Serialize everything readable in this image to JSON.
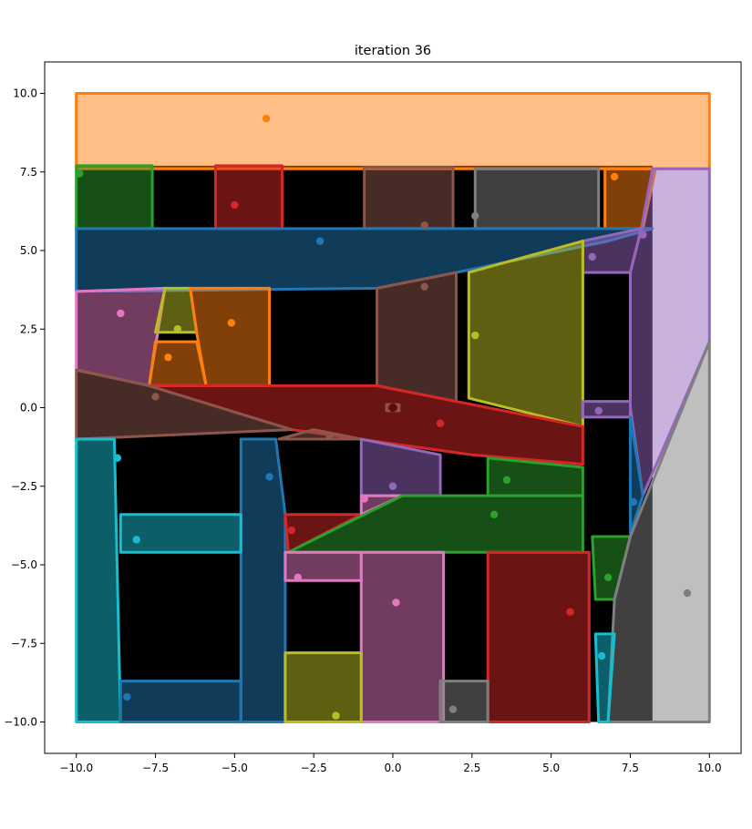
{
  "chart_data": {
    "type": "polygon-map",
    "title": "iteration 36",
    "xlim": [
      -11,
      11
    ],
    "ylim": [
      -11,
      11
    ],
    "x_ticks": [
      -10.0,
      -7.5,
      -5.0,
      -2.5,
      0.0,
      2.5,
      5.0,
      7.5,
      10.0
    ],
    "x_tick_labels": [
      "−10.0",
      "−7.5",
      "−5.0",
      "−2.5",
      "0.0",
      "2.5",
      "5.0",
      "7.5",
      "10.0"
    ],
    "y_ticks": [
      -10.0,
      -7.5,
      -5.0,
      -2.5,
      0.0,
      2.5,
      5.0,
      7.5,
      10.0
    ],
    "y_tick_labels": [
      "−10.0",
      "−7.5",
      "−5.0",
      "−2.5",
      "0.0",
      "2.5",
      "5.0",
      "7.5",
      "10.0"
    ],
    "grid": false,
    "colors": {
      "blue": "#1f77b4",
      "orange": "#ff7f0e",
      "green": "#2ca02c",
      "red": "#d62728",
      "purple": "#9467bd",
      "brown": "#8c564b",
      "pink": "#e377c2",
      "gray": "#7f7f7f",
      "olive": "#bcbd22",
      "cyan": "#17becf"
    },
    "background_obstacle": {
      "color": "#000000",
      "polygon": [
        [
          -10,
          7.7
        ],
        [
          8.2,
          7.7
        ],
        [
          8.2,
          -10
        ],
        [
          -10,
          -10
        ]
      ]
    },
    "regions": [
      {
        "color": "orange",
        "site": [
          -4,
          9.2
        ],
        "polygon": [
          [
            -10,
            10
          ],
          [
            10,
            10
          ],
          [
            10,
            7.6
          ],
          [
            -10,
            7.6
          ]
        ]
      },
      {
        "color": "green",
        "site": [
          -9.9,
          7.45
        ],
        "polygon": [
          [
            -10,
            7.7
          ],
          [
            -7.6,
            7.7
          ],
          [
            -7.6,
            5.7
          ],
          [
            -10,
            5.7
          ]
        ]
      },
      {
        "color": "red",
        "site": [
          -5.0,
          6.45
        ],
        "polygon": [
          [
            -5.6,
            7.7
          ],
          [
            -3.5,
            7.7
          ],
          [
            -3.5,
            5.7
          ],
          [
            -5.6,
            5.7
          ]
        ]
      },
      {
        "color": "brown",
        "site": [
          1.0,
          5.8
        ],
        "polygon": [
          [
            -0.9,
            7.65
          ],
          [
            1.9,
            7.65
          ],
          [
            1.9,
            5.7
          ],
          [
            -0.9,
            5.7
          ]
        ]
      },
      {
        "color": "gray",
        "site": [
          2.6,
          6.1
        ],
        "polygon": [
          [
            2.6,
            7.6
          ],
          [
            6.5,
            7.6
          ],
          [
            6.5,
            5.7
          ],
          [
            2.6,
            5.7
          ]
        ]
      },
      {
        "color": "orange",
        "site": [
          7.0,
          7.35
        ],
        "polygon": [
          [
            6.7,
            7.6
          ],
          [
            8.3,
            7.6
          ],
          [
            7.9,
            5.7
          ],
          [
            6.7,
            5.7
          ]
        ]
      },
      {
        "color": "blue",
        "site": [
          -2.3,
          5.3
        ],
        "polygon": [
          [
            -10,
            5.7
          ],
          [
            8.2,
            5.7
          ],
          [
            6.8,
            5.3
          ],
          [
            2.0,
            4.3
          ],
          [
            -0.5,
            3.8
          ],
          [
            -10,
            3.7
          ]
        ]
      },
      {
        "color": "purple",
        "site": [
          7.9,
          5.5
        ],
        "polygon": [
          [
            8.2,
            7.6
          ],
          [
            10,
            7.6
          ],
          [
            10,
            2.1
          ],
          [
            7.9,
            -2.8
          ],
          [
            7.5,
            0.0
          ],
          [
            7.5,
            4.3
          ],
          [
            7.85,
            5.7
          ]
        ]
      },
      {
        "color": "purple",
        "site": [
          6.3,
          4.8
        ],
        "polygon": [
          [
            6.0,
            5.3
          ],
          [
            7.85,
            5.7
          ],
          [
            7.5,
            4.3
          ],
          [
            6.0,
            4.3
          ]
        ]
      },
      {
        "color": "pink",
        "site": [
          -8.6,
          3.0
        ],
        "polygon": [
          [
            -10,
            3.7
          ],
          [
            -7.2,
            3.8
          ],
          [
            -7.7,
            0.7
          ],
          [
            -10,
            1.2
          ]
        ]
      },
      {
        "color": "olive",
        "site": [
          -6.8,
          2.5
        ],
        "polygon": [
          [
            -7.2,
            3.8
          ],
          [
            -6.4,
            3.8
          ],
          [
            -6.2,
            2.4
          ],
          [
            -7.5,
            2.4
          ]
        ]
      },
      {
        "color": "orange",
        "site": [
          -5.1,
          2.7
        ],
        "polygon": [
          [
            -6.4,
            3.8
          ],
          [
            -3.9,
            3.8
          ],
          [
            -3.9,
            0.7
          ],
          [
            -5.9,
            0.7
          ],
          [
            -6.2,
            2.4
          ]
        ]
      },
      {
        "color": "orange",
        "site": [
          -7.1,
          1.6
        ],
        "polygon": [
          [
            -7.5,
            2.1
          ],
          [
            -6.2,
            2.1
          ],
          [
            -5.9,
            0.7
          ],
          [
            -7.7,
            0.7
          ]
        ]
      },
      {
        "color": "brown",
        "site": [
          1.0,
          3.85
        ],
        "polygon": [
          [
            -0.5,
            3.8
          ],
          [
            2.0,
            4.3
          ],
          [
            2.0,
            0.2
          ],
          [
            -0.5,
            0.7
          ]
        ]
      },
      {
        "color": "olive",
        "site": [
          2.6,
          2.3
        ],
        "polygon": [
          [
            2.4,
            4.3
          ],
          [
            6.0,
            5.3
          ],
          [
            6.0,
            -0.6
          ],
          [
            2.4,
            0.3
          ]
        ]
      },
      {
        "color": "red",
        "site": [
          1.5,
          -0.5
        ],
        "polygon": [
          [
            -7.7,
            0.7
          ],
          [
            -0.5,
            0.7
          ],
          [
            2.0,
            0.2
          ],
          [
            6.0,
            -0.6
          ],
          [
            6.0,
            -1.8
          ],
          [
            2.5,
            -1.5
          ],
          [
            -3.2,
            -0.7
          ]
        ]
      },
      {
        "color": "brown",
        "site": [
          -7.5,
          0.35
        ],
        "polygon": [
          [
            -10,
            1.2
          ],
          [
            -7.7,
            0.7
          ],
          [
            -3.2,
            -0.7
          ],
          [
            -10,
            -1.0
          ]
        ]
      },
      {
        "color": "brown",
        "site": [
          -2.0,
          -0.9
        ],
        "polygon": [
          [
            -3.6,
            -1.0
          ],
          [
            -2.5,
            -0.7
          ],
          [
            -1.0,
            -1.0
          ]
        ]
      },
      {
        "color": "brown",
        "site": [
          0.0,
          0.0
        ],
        "polygon": [
          [
            -0.2,
            0.1
          ],
          [
            0.2,
            0.1
          ],
          [
            0.2,
            -0.1
          ],
          [
            -0.2,
            -0.1
          ]
        ]
      },
      {
        "color": "purple",
        "site": [
          6.5,
          -0.1
        ],
        "polygon": [
          [
            6.0,
            0.2
          ],
          [
            7.5,
            0.2
          ],
          [
            7.5,
            -0.3
          ],
          [
            6.0,
            -0.3
          ]
        ]
      },
      {
        "color": "cyan",
        "site": [
          -8.7,
          -1.6
        ],
        "polygon": [
          [
            -10,
            -1.0
          ],
          [
            -8.8,
            -1.0
          ],
          [
            -8.6,
            -10
          ],
          [
            -10,
            -10
          ]
        ]
      },
      {
        "color": "blue",
        "site": [
          -3.9,
          -2.2
        ],
        "polygon": [
          [
            -4.8,
            -1.0
          ],
          [
            -3.7,
            -1.0
          ],
          [
            -3.4,
            -3.4
          ],
          [
            -3.4,
            -10
          ],
          [
            -4.8,
            -10
          ]
        ]
      },
      {
        "color": "purple",
        "site": [
          0.0,
          -2.5
        ],
        "polygon": [
          [
            -1.0,
            -1.0
          ],
          [
            1.5,
            -1.5
          ],
          [
            1.5,
            -2.8
          ],
          [
            -1.0,
            -2.8
          ]
        ]
      },
      {
        "color": "green",
        "site": [
          3.6,
          -2.3
        ],
        "polygon": [
          [
            3.0,
            -1.6
          ],
          [
            6.0,
            -1.9
          ],
          [
            6.0,
            -2.8
          ],
          [
            3.0,
            -2.8
          ]
        ]
      },
      {
        "color": "blue",
        "site": [
          7.6,
          -3.0
        ],
        "polygon": [
          [
            7.5,
            -0.3
          ],
          [
            7.9,
            -2.8
          ],
          [
            7.5,
            -4.0
          ],
          [
            7.5,
            -0.3
          ]
        ]
      },
      {
        "color": "cyan",
        "site": [
          -8.1,
          -4.2
        ],
        "polygon": [
          [
            -8.6,
            -3.4
          ],
          [
            -4.8,
            -3.4
          ],
          [
            -4.8,
            -4.6
          ],
          [
            -8.6,
            -4.6
          ]
        ]
      },
      {
        "color": "red",
        "site": [
          -3.2,
          -3.9
        ],
        "polygon": [
          [
            -3.4,
            -3.4
          ],
          [
            -1.0,
            -3.4
          ],
          [
            -3.3,
            -4.6
          ]
        ]
      },
      {
        "color": "pink",
        "site": [
          -0.9,
          -2.9
        ],
        "polygon": [
          [
            -1.0,
            -2.8
          ],
          [
            0.3,
            -2.8
          ],
          [
            -1.0,
            -3.4
          ]
        ]
      },
      {
        "color": "green",
        "site": [
          3.2,
          -3.4
        ],
        "polygon": [
          [
            0.3,
            -2.8
          ],
          [
            6.0,
            -2.8
          ],
          [
            6.0,
            -4.6
          ],
          [
            -3.3,
            -4.6
          ]
        ]
      },
      {
        "color": "pink",
        "site": [
          -3.0,
          -5.4
        ],
        "polygon": [
          [
            -3.4,
            -4.6
          ],
          [
            -1.0,
            -4.6
          ],
          [
            -1.0,
            -5.5
          ],
          [
            -3.4,
            -5.5
          ]
        ]
      },
      {
        "color": "pink",
        "site": [
          0.1,
          -6.2
        ],
        "polygon": [
          [
            -1.0,
            -4.6
          ],
          [
            1.6,
            -4.6
          ],
          [
            1.6,
            -10
          ],
          [
            -1.0,
            -10
          ]
        ]
      },
      {
        "color": "red",
        "site": [
          5.6,
          -6.5
        ],
        "polygon": [
          [
            3.0,
            -4.6
          ],
          [
            6.2,
            -4.6
          ],
          [
            6.2,
            -10
          ],
          [
            3.0,
            -10
          ]
        ]
      },
      {
        "color": "green",
        "site": [
          6.8,
          -5.4
        ],
        "polygon": [
          [
            6.3,
            -4.1
          ],
          [
            7.5,
            -4.1
          ],
          [
            7.0,
            -6.1
          ],
          [
            6.4,
            -6.1
          ]
        ]
      },
      {
        "color": "gray",
        "site": [
          9.3,
          -5.9
        ],
        "polygon": [
          [
            10,
            2.1
          ],
          [
            10,
            -10
          ],
          [
            6.8,
            -10
          ],
          [
            7.0,
            -6.1
          ],
          [
            7.5,
            -4.1
          ]
        ]
      },
      {
        "color": "cyan",
        "site": [
          6.6,
          -7.9
        ],
        "polygon": [
          [
            6.4,
            -7.2
          ],
          [
            7.0,
            -7.2
          ],
          [
            6.8,
            -10
          ],
          [
            6.5,
            -10
          ]
        ]
      },
      {
        "color": "blue",
        "site": [
          -8.4,
          -9.2
        ],
        "polygon": [
          [
            -8.6,
            -8.7
          ],
          [
            -4.8,
            -8.7
          ],
          [
            -4.8,
            -10
          ],
          [
            -8.6,
            -10
          ]
        ]
      },
      {
        "color": "olive",
        "site": [
          -1.8,
          -9.8
        ],
        "polygon": [
          [
            -3.4,
            -7.8
          ],
          [
            -1.0,
            -7.8
          ],
          [
            -1.0,
            -10
          ],
          [
            -3.4,
            -10
          ]
        ]
      },
      {
        "color": "gray",
        "site": [
          1.9,
          -9.6
        ],
        "polygon": [
          [
            1.5,
            -8.7
          ],
          [
            3.0,
            -8.7
          ],
          [
            3.0,
            -10
          ],
          [
            1.5,
            -10
          ]
        ]
      }
    ],
    "extra_points": [
      {
        "color": "#5c0a0a",
        "site": [
          0.0,
          0.0
        ]
      }
    ]
  }
}
